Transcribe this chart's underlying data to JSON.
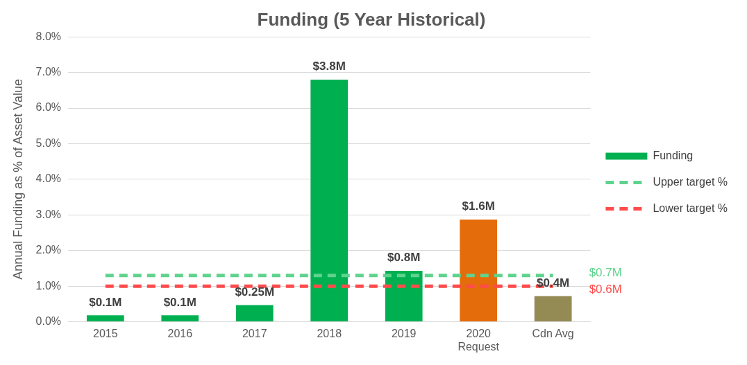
{
  "chart_data": {
    "type": "bar",
    "title": "Funding (5 Year Historical)",
    "ylabel": "Annual Funding as % of Asset Value",
    "categories": [
      "2015",
      "2016",
      "2017",
      "2018",
      "2019",
      "2020\nRequest",
      "Cdn Avg"
    ],
    "series": [
      {
        "name": "Funding",
        "colors": [
          "#00b050",
          "#00b050",
          "#00b050",
          "#00b050",
          "#00b050",
          "#e46c0a",
          "#948a54"
        ],
        "color": "#00b050",
        "values": [
          0.18,
          0.18,
          0.47,
          6.8,
          1.43,
          2.87,
          0.72
        ]
      },
      {
        "name": "Upper target %",
        "type": "line",
        "line_style": "dashed",
        "color": "#5fd38d",
        "values": [
          1.3,
          1.3,
          1.3,
          1.3,
          1.3,
          1.3,
          1.3
        ]
      },
      {
        "name": "Lower target %",
        "type": "line",
        "line_style": "dashed",
        "color": "#ff4b4b",
        "values": [
          1.0,
          1.0,
          1.0,
          1.0,
          1.0,
          1.0,
          1.0
        ]
      }
    ],
    "annotations": [
      {
        "text": "$0.1M",
        "x": "2015",
        "y": 0.18
      },
      {
        "text": "$0.1M",
        "x": "2016",
        "y": 0.18
      },
      {
        "text": "$0.25M",
        "x": "2017",
        "y": 0.47
      },
      {
        "text": "$3.8M",
        "x": "2018",
        "y": 6.8
      },
      {
        "text": "$0.8M",
        "x": "2019",
        "y": 1.43
      },
      {
        "text": "$1.6M",
        "x": "2020\nRequest",
        "y": 2.87
      },
      {
        "text": "$0.4M",
        "x": "Cdn Avg",
        "y": 0.72
      },
      "$0.7M",
      "$0.6M"
    ],
    "ylim": [
      0,
      8
    ],
    "yticks": [
      {
        "value": 0,
        "label": "0.0%"
      },
      {
        "value": 1,
        "label": "1.0%"
      },
      {
        "value": 2,
        "label": "2.0%"
      },
      {
        "value": 3,
        "label": "3.0%"
      },
      {
        "value": 4,
        "label": "4.0%"
      },
      {
        "value": 5,
        "label": "5.0%"
      },
      {
        "value": 6,
        "label": "6.0%"
      },
      {
        "value": 7,
        "label": "7.0%"
      },
      {
        "value": 8,
        "label": "8.0%"
      }
    ],
    "grid": "y",
    "legend": "right"
  }
}
